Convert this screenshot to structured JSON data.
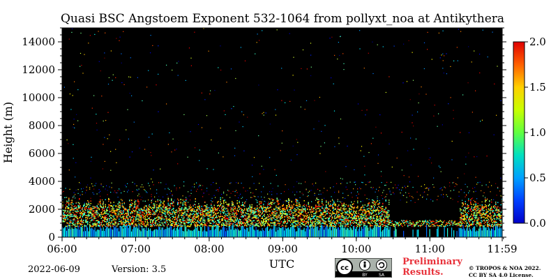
{
  "chart_data": {
    "type": "heatmap",
    "title": "Quasi BSC Angstoem Exponent 532-1064 from pollyxt_noa at Antikythera",
    "xlabel": "UTC",
    "ylabel": "Height (m)",
    "x_ticks": [
      "06:00",
      "07:00",
      "08:00",
      "09:00",
      "10:00",
      "11:00",
      "11:59"
    ],
    "x_tick_hours": [
      6,
      7,
      8,
      9,
      10,
      11,
      11.9833
    ],
    "xlim": [
      6,
      11.9833
    ],
    "y_ticks": [
      0,
      2000,
      4000,
      6000,
      8000,
      10000,
      12000,
      14000
    ],
    "ylim": [
      0,
      15000
    ],
    "colorbar": {
      "ticks": [
        "0.0",
        "0.5",
        "1.0",
        "1.5",
        "2.0"
      ],
      "tick_values": [
        0,
        0.5,
        1.0,
        1.5,
        2.0
      ],
      "range": [
        0,
        2.0
      ],
      "colormap": "jet"
    },
    "background_color": "#000000",
    "description_layers": {
      "dense_layer_top_m": 2500,
      "sparse_layer_top_m": 4000
    }
  },
  "footer": {
    "date": "2022-06-09",
    "version": "Version: 3.5",
    "preliminary_line1": "Preliminary",
    "preliminary_line2": "Results.",
    "license_line1": "© TROPOS & NOA 2022.",
    "license_line2": "CC BY SA 4.0 License.",
    "cc_label": "cc",
    "by_label": "BY",
    "sa_label": "SA"
  },
  "colors": {
    "preliminary": "#e8313a"
  }
}
